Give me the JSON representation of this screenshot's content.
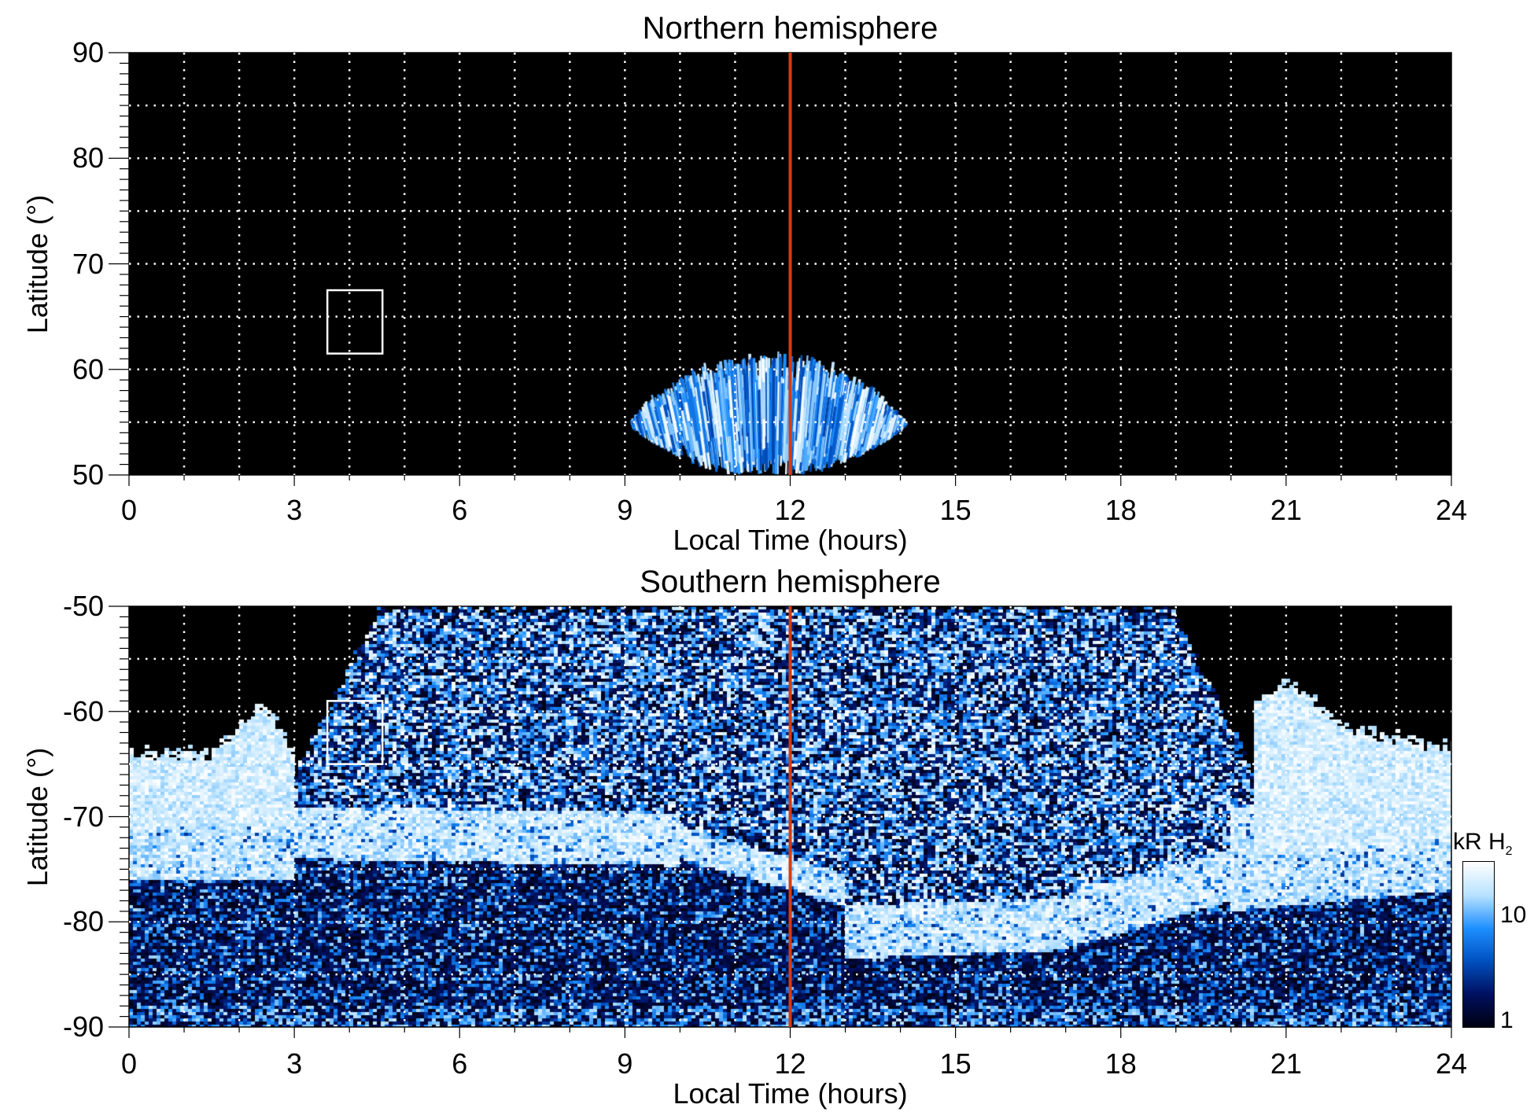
{
  "chart_data": [
    {
      "type": "heatmap",
      "title": "Northern hemisphere",
      "xlabel": "Local Time (hours)",
      "ylabel": "Latitude (°)",
      "xlim": [
        0,
        24
      ],
      "ylim": [
        50,
        90
      ],
      "xticks": [
        "0",
        "3",
        "6",
        "9",
        "12",
        "15",
        "18",
        "21",
        "24"
      ],
      "yticks": [
        "50",
        "60",
        "70",
        "80",
        "90"
      ],
      "grid": true,
      "noon_line": {
        "x": 12,
        "color": "#d83a10"
      },
      "box": {
        "x": [
          3.6,
          4.6
        ],
        "y": [
          61.5,
          67.5
        ]
      },
      "emission": "H2 auroral emission fan between 9 and 14 LT, latitudes 50-62"
    },
    {
      "type": "heatmap",
      "title": "Southern hemisphere",
      "xlabel": "Local Time (hours)",
      "ylabel": "Latitude (°)",
      "xlim": [
        0,
        24
      ],
      "ylim": [
        -90,
        -50
      ],
      "xticks": [
        "0",
        "3",
        "6",
        "9",
        "12",
        "15",
        "18",
        "21",
        "24"
      ],
      "yticks": [
        "-90",
        "-80",
        "-70",
        "-60",
        "-50"
      ],
      "grid": true,
      "noon_line": {
        "x": 12,
        "color": "#d83a10"
      },
      "box": {
        "x": [
          3.6,
          4.6
        ],
        "y": [
          -65,
          -59
        ]
      },
      "emission": "Bright oval near -70 to -75 latitude on dawn/dusk, speckled dayside emission to -50"
    }
  ],
  "colorbar": {
    "label": "kR H",
    "label_sub": "2",
    "scale": "log",
    "range": [
      1,
      30
    ],
    "ticks": [
      "1",
      "10"
    ],
    "colors": [
      "#000010",
      "#001060",
      "#0050c0",
      "#1e90ff",
      "#b8e2ff",
      "#ffffff"
    ]
  }
}
